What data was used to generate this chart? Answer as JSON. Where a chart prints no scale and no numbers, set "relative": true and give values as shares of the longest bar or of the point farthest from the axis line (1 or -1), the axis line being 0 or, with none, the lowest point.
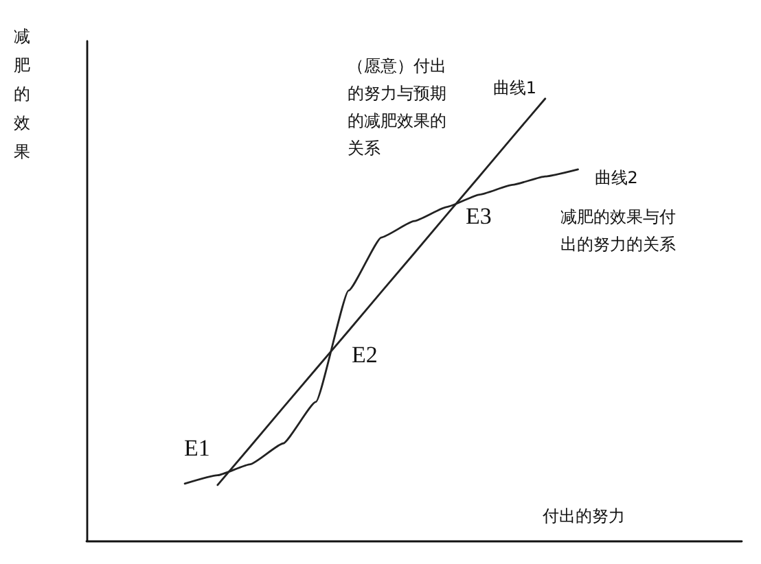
{
  "chart_data": {
    "type": "line",
    "xlabel": "付出的努力",
    "ylabel": "减肥的效果",
    "relative": true,
    "marker": "none",
    "categories": [
      null,
      null,
      null,
      null,
      null,
      null,
      null,
      null,
      null,
      null,
      null,
      null,
      null,
      null,
      null,
      null,
      null,
      null,
      null,
      null,
      null
    ],
    "series": [
      {
        "name": "曲线1",
        "color": "#222222",
        "values": [
          null,
          null,
          null,
          null,
          0.126,
          0.213,
          0.301,
          0.388,
          0.475,
          0.563,
          0.65,
          0.738,
          0.825,
          0.913,
          1,
          null,
          null,
          null,
          null,
          null,
          null
        ]
      },
      {
        "name": "曲线2",
        "color": "#222222",
        "values": [
          null,
          null,
          null,
          0.129,
          0.148,
          0.173,
          0.22,
          0.314,
          0.566,
          0.686,
          0.723,
          0.755,
          0.783,
          0.805,
          0.824,
          0.84,
          null,
          null,
          null,
          null,
          null
        ]
      }
    ],
    "annotations": [
      "（愿意）付出的努力与预期的减肥效果的关系",
      "减肥的效果与付出的努力的关系",
      "E1",
      "E2",
      "E3"
    ]
  }
}
